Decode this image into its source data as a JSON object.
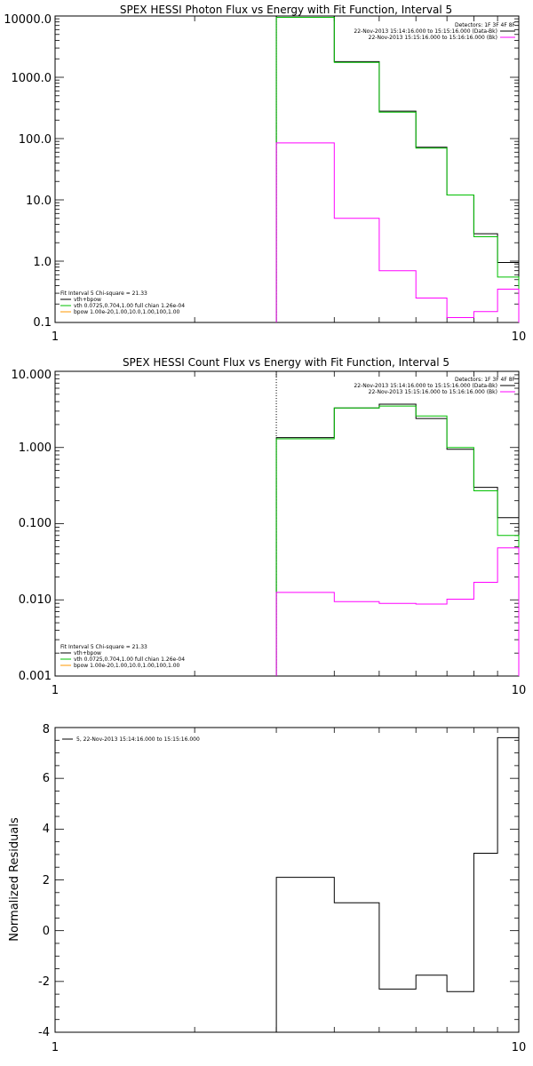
{
  "colors": {
    "data": "#000000",
    "background": "#ff00ff",
    "fit": "#00c000",
    "total_fit": "#000000",
    "component_vth": "#ff0000",
    "component_bpow": "#ff9900",
    "marker": "#006400"
  },
  "chart_data": [
    {
      "type": "line",
      "title": "SPEX HESSI Photon Flux vs Energy with Fit Function, Interval 5",
      "xscale": "log",
      "yscale": "log",
      "xlim": [
        1,
        10
      ],
      "ylim": [
        0.1,
        10000
      ],
      "x_ticks": [
        "1",
        "10"
      ],
      "y_ticks": [
        "0.1",
        "1.0",
        "10.0",
        "100.0",
        "1000.0",
        "10000.0"
      ],
      "grid": false,
      "energy_edges": [
        3,
        4,
        5,
        6,
        7,
        8,
        9,
        10
      ],
      "marker_energy": 3,
      "series": [
        {
          "id": "data",
          "values": [
            10000,
            1800,
            280,
            72,
            12,
            2.8,
            0.95
          ]
        },
        {
          "id": "fit",
          "values": [
            9500,
            1750,
            270,
            70,
            12,
            2.5,
            0.55
          ]
        },
        {
          "id": "background",
          "values": [
            85,
            5,
            0.7,
            0.25,
            0.12,
            0.15,
            0.35
          ]
        }
      ],
      "legend_right": {
        "header": "Detectors: 1F 3F 4F 8F",
        "entries": [
          "22-Nov-2013 15:14:16.000 to 15:15:16.000 (Data-Bk)",
          "22-Nov-2013 15:15:16.000 to 15:16:16.000 (Bk)"
        ]
      },
      "legend_left": {
        "header": "Fit Interval 5   Chi-square = 21.33",
        "entries": [
          "vth+bpow",
          "vth 0.0725,0.704,1.00  full chian 1.26e-04",
          "bpow 1.00e-20,1.00,10.0,1.00,100,1.00"
        ]
      }
    },
    {
      "type": "line",
      "title": "SPEX HESSI Count Flux vs Energy with Fit Function, Interval 5",
      "xscale": "log",
      "yscale": "log",
      "xlim": [
        1,
        10
      ],
      "ylim": [
        0.001,
        10
      ],
      "x_ticks": [
        "1",
        "10"
      ],
      "y_ticks": [
        "0.001",
        "0.010",
        "0.100",
        "1.000",
        "10.000"
      ],
      "grid": false,
      "energy_edges": [
        3,
        4,
        5,
        6,
        7,
        8,
        9,
        10
      ],
      "marker_energy": 3,
      "series": [
        {
          "id": "data",
          "values": [
            1.35,
            3.3,
            3.7,
            2.4,
            0.95,
            0.3,
            0.12
          ]
        },
        {
          "id": "fit",
          "values": [
            1.3,
            3.3,
            3.5,
            2.6,
            1.0,
            0.27,
            0.07
          ]
        },
        {
          "id": "background",
          "values": [
            0.0125,
            0.0095,
            0.009,
            0.0088,
            0.0102,
            0.017,
            0.048
          ]
        }
      ],
      "legend_right": {
        "header": "Detectors: 1F 3F 4F 8F",
        "entries": [
          "22-Nov-2013 15:14:16.000 to 15:15:16.000 (Data-Bk)",
          "22-Nov-2013 15:15:16.000 to 15:16:16.000 (Bk)"
        ]
      },
      "legend_left": {
        "header": "Fit Interval 5   Chi-square = 21.33",
        "entries": [
          "vth+bpow",
          "vth 0.0725,0.704,1.00  full chian 1.26e-04",
          "bpow 1.00e-20,1.00,10.0,1.00,100,1.00"
        ]
      }
    },
    {
      "type": "line",
      "title": "",
      "xscale": "log",
      "yscale": "linear",
      "xlim": [
        1,
        10
      ],
      "ylim": [
        -4,
        8
      ],
      "ylabel": "Normalized Residuals",
      "x_ticks": [
        "1",
        "10"
      ],
      "y_ticks": [
        "-4",
        "-2",
        "0",
        "2",
        "4",
        "6",
        "8"
      ],
      "grid": false,
      "energy_edges": [
        3,
        4,
        5,
        6,
        7,
        8,
        9,
        10
      ],
      "series": [
        {
          "id": "residuals",
          "values": [
            2.1,
            1.1,
            -2.3,
            -1.75,
            -2.4,
            3.05,
            7.6
          ]
        }
      ],
      "legend_left": {
        "entries": [
          "5, 22-Nov-2013 15:14:16.000 to 15:15:16.000"
        ]
      }
    }
  ]
}
